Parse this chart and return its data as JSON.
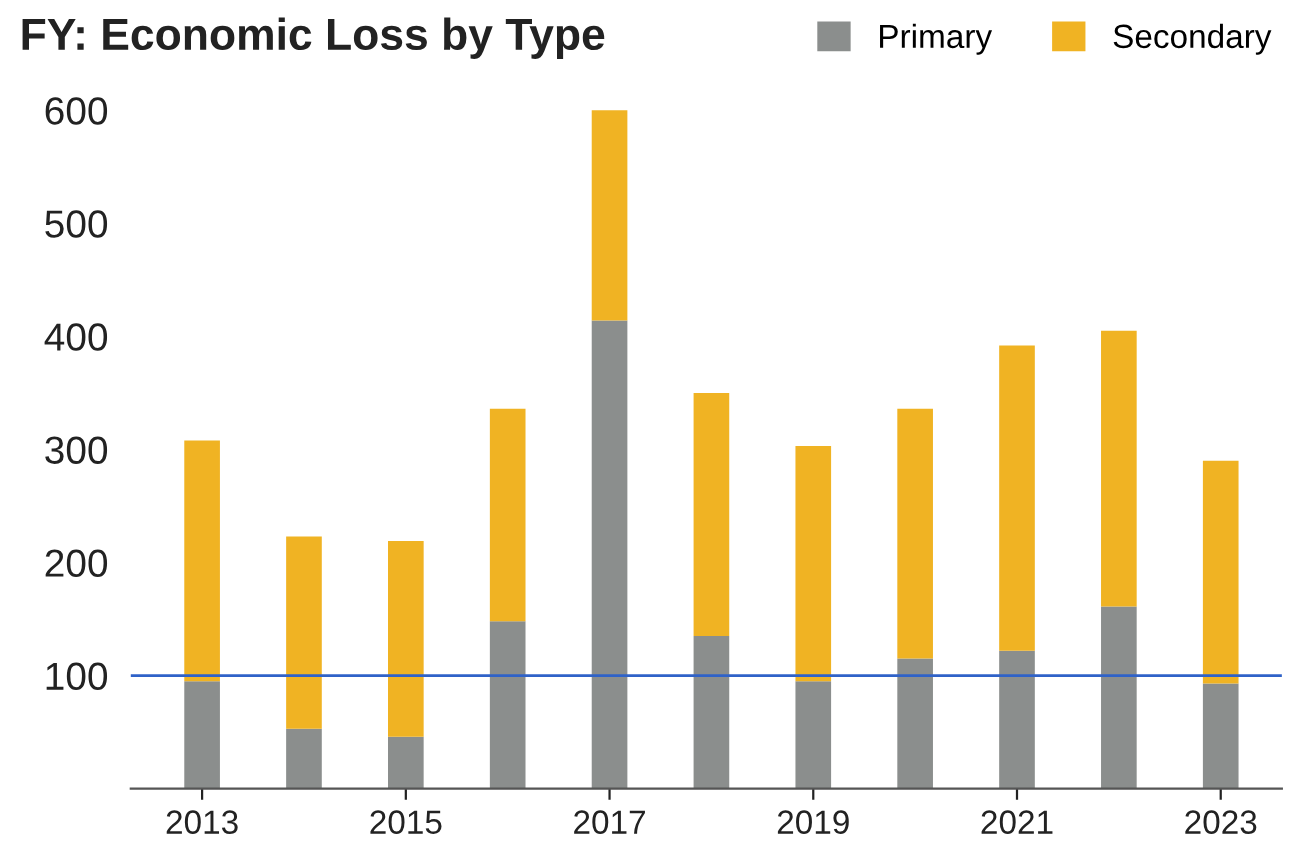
{
  "chart_data": {
    "type": "bar",
    "title": "FY: Economic Loss by Type",
    "stacked": true,
    "categories": [
      "2013",
      null,
      "2015",
      null,
      "2017",
      null,
      "2019",
      null,
      "2021",
      null,
      "2023"
    ],
    "series": [
      {
        "name": "Primary",
        "color": "#8b8e8d",
        "values": [
          95,
          53,
          46,
          148,
          414,
          135,
          95,
          115,
          122,
          161,
          93
        ]
      },
      {
        "name": "Secondary",
        "color": "#f0b323",
        "values": [
          213,
          170,
          173,
          188,
          186,
          215,
          208,
          221,
          270,
          244,
          197
        ]
      }
    ],
    "ylim": [
      0,
      600
    ],
    "yticks": [
      100,
      200,
      300,
      400,
      500,
      600
    ],
    "grid": false,
    "legend": "top right",
    "ref_lines": [
      {
        "axis": "y",
        "value": 100,
        "color": "#2f62c8"
      }
    ]
  }
}
